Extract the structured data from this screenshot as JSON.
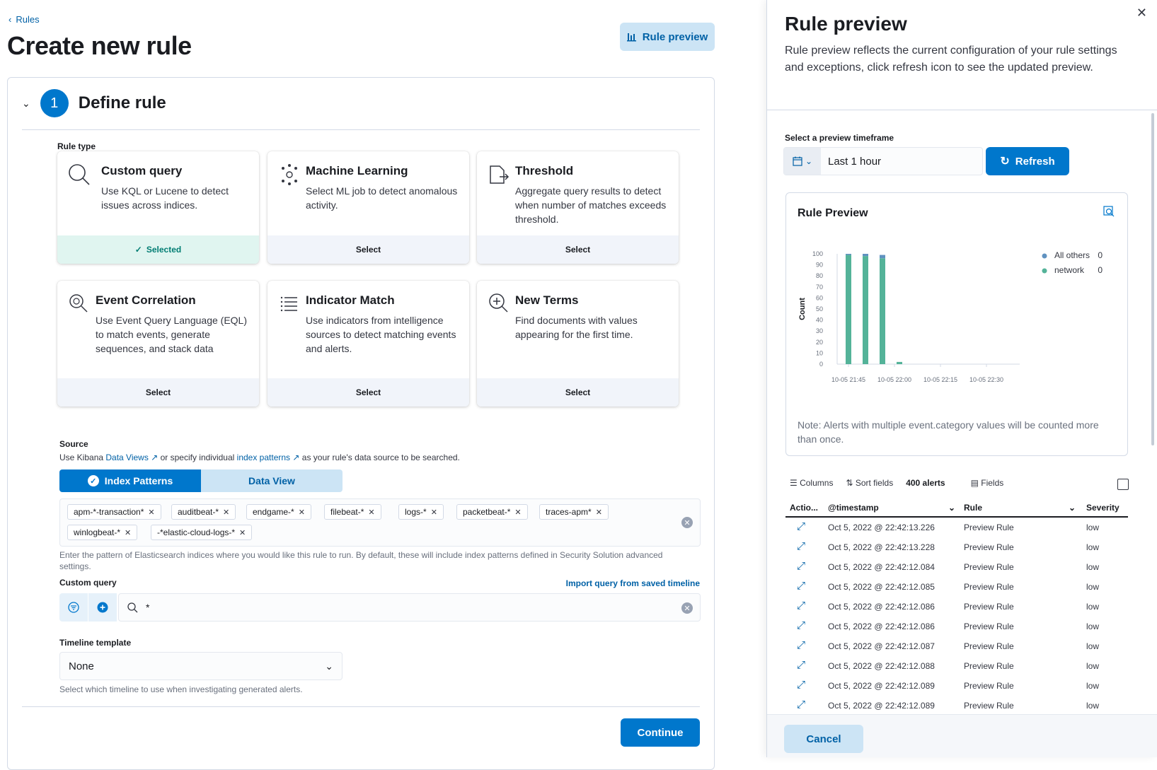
{
  "breadcrumb": {
    "label": "Rules"
  },
  "page": {
    "title": "Create new rule",
    "rule_preview_button": "Rule preview"
  },
  "step": {
    "number": "1",
    "title": "Define rule"
  },
  "rule_type": {
    "label": "Rule type",
    "cards": [
      {
        "title": "Custom query",
        "desc": "Use KQL or Lucene to detect issues across indices.",
        "action": "Selected",
        "icon": "search-icon"
      },
      {
        "title": "Machine Learning",
        "desc": "Select ML job to detect anomalous activity.",
        "action": "Select",
        "icon": "ml-icon"
      },
      {
        "title": "Threshold",
        "desc": "Aggregate query results to detect when number of matches exceeds threshold.",
        "action": "Select",
        "icon": "threshold-icon"
      },
      {
        "title": "Event Correlation",
        "desc": "Use Event Query Language (EQL) to match events, generate sequences, and stack data",
        "action": "Select",
        "icon": "magnifier-icon"
      },
      {
        "title": "Indicator Match",
        "desc": "Use indicators from intelligence sources to detect matching events and alerts.",
        "action": "Select",
        "icon": "list-icon"
      },
      {
        "title": "New Terms",
        "desc": "Find documents with values appearing for the first time.",
        "action": "Select",
        "icon": "zoom-plus-icon"
      }
    ]
  },
  "source": {
    "label": "Source",
    "text_1": "Use Kibana ",
    "link_1": "Data Views",
    "text_2": " or specify individual ",
    "link_2": "index patterns",
    "text_3": " as your rule's data source to be searched.",
    "toggle_index": "Index Patterns",
    "toggle_dataview": "Data View",
    "patterns": [
      "apm-*-transaction*",
      "auditbeat-*",
      "endgame-*",
      "filebeat-*",
      "logs-*",
      "packetbeat-*",
      "traces-apm*",
      "winlogbeat-*",
      "-*elastic-cloud-logs-*"
    ],
    "help": "Enter the pattern of Elasticsearch indices where you would like this rule to run. By default, these will include index patterns defined in Security Solution advanced settings."
  },
  "custom_query": {
    "label": "Custom query",
    "import_link": "Import query from saved timeline",
    "value": "*"
  },
  "timeline": {
    "label": "Timeline template",
    "value": "None",
    "help": "Select which timeline to use when investigating generated alerts."
  },
  "continue_label": "Continue",
  "flyout": {
    "title": "Rule preview",
    "desc": "Rule preview reflects the current configuration of your rule settings and exceptions, click refresh icon to see the updated preview.",
    "timeframe_label": "Select a preview timeframe",
    "timeframe_value": "Last 1 hour",
    "refresh_label": "Refresh",
    "chart_title": "Rule Preview",
    "note": "Note: Alerts with multiple event.category values will be counted more than once.",
    "toolbar": {
      "columns": "Columns",
      "sort": "Sort fields",
      "alerts": "400 alerts",
      "fields": "Fields"
    },
    "headers": {
      "actions": "Actio...",
      "timestamp": "@timestamp",
      "rule": "Rule",
      "severity": "Severity"
    },
    "rows": [
      {
        "timestamp": "Oct 5, 2022 @ 22:42:13.226",
        "rule": "Preview Rule",
        "severity": "low"
      },
      {
        "timestamp": "Oct 5, 2022 @ 22:42:13.228",
        "rule": "Preview Rule",
        "severity": "low"
      },
      {
        "timestamp": "Oct 5, 2022 @ 22:42:12.084",
        "rule": "Preview Rule",
        "severity": "low"
      },
      {
        "timestamp": "Oct 5, 2022 @ 22:42:12.085",
        "rule": "Preview Rule",
        "severity": "low"
      },
      {
        "timestamp": "Oct 5, 2022 @ 22:42:12.086",
        "rule": "Preview Rule",
        "severity": "low"
      },
      {
        "timestamp": "Oct 5, 2022 @ 22:42:12.086",
        "rule": "Preview Rule",
        "severity": "low"
      },
      {
        "timestamp": "Oct 5, 2022 @ 22:42:12.087",
        "rule": "Preview Rule",
        "severity": "low"
      },
      {
        "timestamp": "Oct 5, 2022 @ 22:42:12.088",
        "rule": "Preview Rule",
        "severity": "low"
      },
      {
        "timestamp": "Oct 5, 2022 @ 22:42:12.089",
        "rule": "Preview Rule",
        "severity": "low"
      },
      {
        "timestamp": "Oct 5, 2022 @ 22:42:12.089",
        "rule": "Preview Rule",
        "severity": "low"
      }
    ],
    "cancel_label": "Cancel"
  },
  "chart_data": {
    "type": "bar",
    "ylabel": "Count",
    "ylim": [
      0,
      100
    ],
    "yticks": [
      0,
      10,
      20,
      30,
      40,
      50,
      60,
      70,
      80,
      90,
      100
    ],
    "xticks": [
      "10-05 21:45",
      "10-05 22:00",
      "10-05 22:15",
      "10-05 22:30"
    ],
    "series": [
      {
        "name": "All others",
        "legend_value": "0",
        "color": "#6092c0",
        "values": [
          1,
          2,
          3,
          0
        ]
      },
      {
        "name": "network",
        "legend_value": "0",
        "color": "#54b399",
        "values": [
          99,
          98,
          96,
          2
        ]
      }
    ],
    "legend": "top-right",
    "grid": false
  },
  "colors": {
    "primary": "#0077cc",
    "link": "#0061a6",
    "success": "#017d73"
  }
}
